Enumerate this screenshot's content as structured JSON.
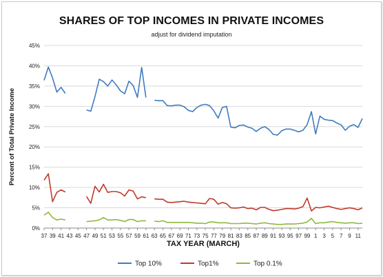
{
  "chart_data": {
    "type": "line",
    "title": "SHARES OF TOP INCOMES IN PRIVATE INCOMES",
    "subtitle": "adjust for dividend imputation",
    "xlabel": "TAX YEAR (MARCH)",
    "ylabel": "Percent of Total Private Income",
    "ylim": [
      0,
      45
    ],
    "y_ticks": [
      "0%",
      "5%",
      "10%",
      "15%",
      "20%",
      "25%",
      "30%",
      "35%",
      "40%",
      "45%"
    ],
    "x_tick_labels": [
      "37",
      "39",
      "41",
      "43",
      "45",
      "47",
      "49",
      "51",
      "53",
      "55",
      "57",
      "59",
      "61",
      "63",
      "65",
      "67",
      "69",
      "71",
      "73",
      "75",
      "77",
      "79",
      "81",
      "83",
      "85",
      "87",
      "89",
      "91",
      "93",
      "95",
      "97",
      "99",
      "1",
      "3",
      "5",
      "7",
      "9",
      "11"
    ],
    "x": [
      1937,
      1938,
      1939,
      1940,
      1941,
      1942,
      1943,
      1944,
      1945,
      1946,
      1947,
      1948,
      1949,
      1950,
      1951,
      1952,
      1953,
      1954,
      1955,
      1956,
      1957,
      1958,
      1959,
      1960,
      1961,
      1962,
      1963,
      1964,
      1965,
      1966,
      1967,
      1968,
      1969,
      1970,
      1971,
      1972,
      1973,
      1974,
      1975,
      1976,
      1977,
      1978,
      1979,
      1980,
      1981,
      1982,
      1983,
      1984,
      1985,
      1986,
      1987,
      1988,
      1989,
      1990,
      1991,
      1992,
      1993,
      1994,
      1995,
      1996,
      1997,
      1998,
      1999,
      2000,
      2001,
      2002,
      2003,
      2004,
      2005,
      2006,
      2007,
      2008,
      2009,
      2010,
      2011,
      2012
    ],
    "grid": true,
    "legend_position": "bottom",
    "series": [
      {
        "name": "Top 10%",
        "color": "#3e7bbf",
        "values": [
          36.4,
          39.7,
          37.0,
          33.5,
          34.7,
          33.2,
          null,
          null,
          null,
          null,
          29.1,
          28.8,
          32.4,
          36.7,
          36.1,
          35.0,
          36.5,
          35.3,
          33.8,
          33.1,
          36.2,
          35.1,
          32.2,
          39.6,
          32.2,
          null,
          31.5,
          31.4,
          31.4,
          30.2,
          30.1,
          30.3,
          30.3,
          29.9,
          29.0,
          28.7,
          29.7,
          30.3,
          30.5,
          30.2,
          28.9,
          27.1,
          29.7,
          30.0,
          24.9,
          24.7,
          25.3,
          25.4,
          24.9,
          24.6,
          23.8,
          24.6,
          25.0,
          24.3,
          23.1,
          22.9,
          24.0,
          24.4,
          24.4,
          24.1,
          23.7,
          24.1,
          25.5,
          28.7,
          23.2,
          27.6,
          26.8,
          26.6,
          26.5,
          25.9,
          25.4,
          24.1,
          25.1,
          25.5,
          24.8,
          27.0
        ]
      },
      {
        "name": "Top1%",
        "color": "#c0392b",
        "values": [
          11.8,
          13.4,
          6.5,
          8.8,
          9.4,
          8.9,
          null,
          null,
          null,
          null,
          7.8,
          6.1,
          10.3,
          8.9,
          10.8,
          8.8,
          9.0,
          9.0,
          8.7,
          7.9,
          9.4,
          9.1,
          7.2,
          7.7,
          7.5,
          null,
          7.2,
          7.1,
          7.1,
          6.4,
          6.3,
          6.4,
          6.5,
          6.6,
          6.4,
          6.3,
          6.2,
          6.1,
          6.0,
          7.3,
          7.1,
          5.9,
          6.3,
          6.0,
          5.0,
          4.9,
          5.0,
          5.2,
          4.8,
          4.9,
          4.5,
          5.1,
          5.1,
          4.6,
          4.3,
          4.4,
          4.6,
          4.8,
          4.8,
          4.7,
          4.9,
          5.3,
          7.4,
          4.2,
          5.1,
          5.0,
          5.2,
          5.4,
          5.1,
          4.8,
          4.6,
          4.8,
          5.0,
          4.8,
          4.5,
          5.0
        ]
      },
      {
        "name": "Top 0.1%",
        "color": "#8db83c",
        "values": [
          3.2,
          3.9,
          2.6,
          2.0,
          2.2,
          2.0,
          null,
          null,
          null,
          null,
          1.6,
          1.7,
          1.8,
          2.0,
          2.6,
          2.0,
          2.0,
          2.1,
          1.9,
          1.6,
          2.1,
          2.1,
          1.6,
          1.8,
          1.8,
          null,
          1.7,
          1.6,
          1.8,
          1.4,
          1.4,
          1.4,
          1.4,
          1.4,
          1.4,
          1.3,
          1.2,
          1.2,
          1.1,
          1.5,
          1.5,
          1.3,
          1.3,
          1.3,
          1.1,
          1.1,
          1.1,
          1.2,
          1.2,
          1.1,
          1.0,
          1.2,
          1.3,
          1.1,
          1.0,
          0.9,
          0.9,
          1.0,
          1.0,
          1.0,
          1.1,
          1.2,
          1.5,
          2.4,
          1.1,
          1.3,
          1.3,
          1.5,
          1.6,
          1.4,
          1.3,
          1.2,
          1.3,
          1.3,
          1.1,
          1.2
        ]
      }
    ]
  }
}
